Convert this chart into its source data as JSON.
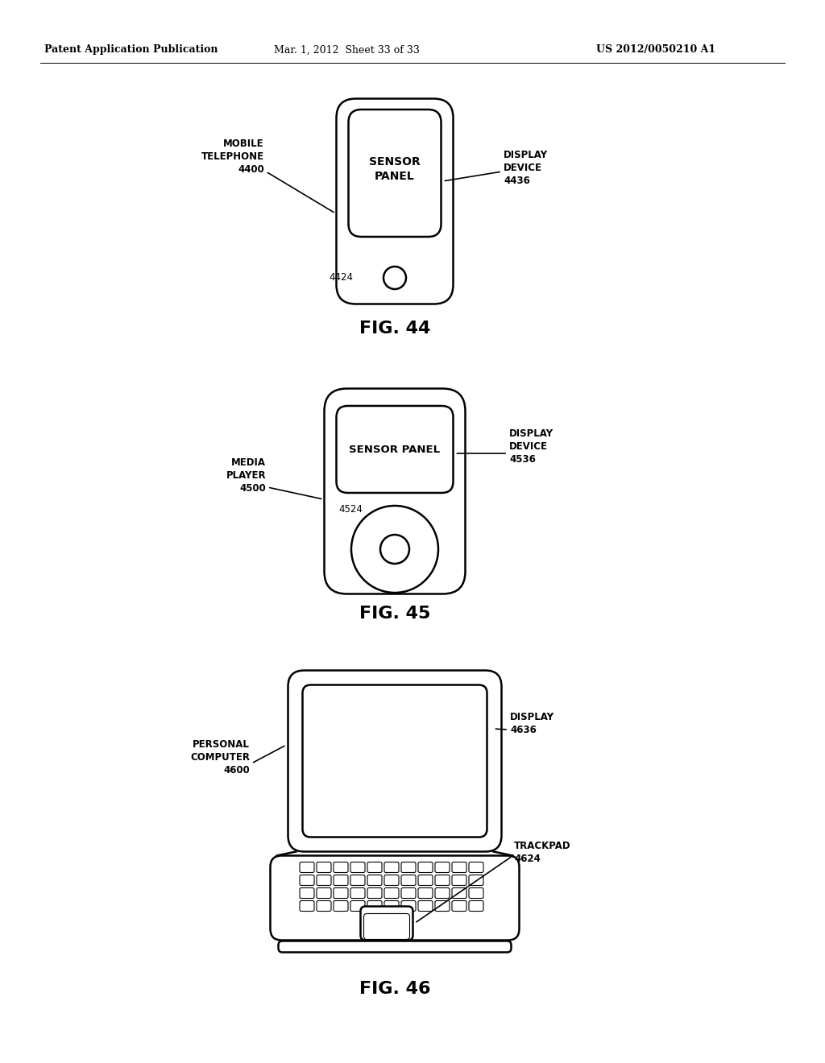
{
  "bg_color": "#ffffff",
  "header_left": "Patent Application Publication",
  "header_mid": "Mar. 1, 2012  Sheet 33 of 33",
  "header_right": "US 2012/0050210 A1",
  "line_color": "#000000",
  "line_width": 1.8,
  "font_size_label": 8.5,
  "font_size_fig": 16,
  "font_size_header": 9
}
